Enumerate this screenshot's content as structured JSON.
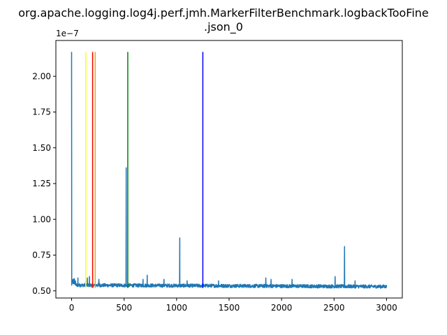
{
  "chart_data": {
    "type": "line",
    "title_line1": "org.apache.logging.log4j.perf.jmh.MarkerFilterBenchmark.logbackTooFine",
    "title_line2": ".json_0",
    "xlabel": "",
    "ylabel": "",
    "xlim": [
      -150,
      3150
    ],
    "ylim": [
      4.5e-08,
      2.25e-07
    ],
    "y_offset_label": "1e−7",
    "x_ticks": [
      0,
      500,
      1000,
      1500,
      2000,
      2500,
      3000
    ],
    "x_tick_labels": [
      "0",
      "500",
      "1000",
      "1500",
      "2000",
      "2500",
      "3000"
    ],
    "y_ticks": [
      5e-08,
      7.5e-08,
      1e-07,
      1.25e-07,
      1.5e-07,
      1.75e-07,
      2e-07
    ],
    "y_tick_labels": [
      "0.50",
      "0.75",
      "1.00",
      "1.25",
      "1.50",
      "1.75",
      "2.00"
    ],
    "grid": false,
    "series": [
      {
        "color": "#1f77b4",
        "baseline": 5.4e-08,
        "x_end": 3000,
        "tail_value": 5.3e-08,
        "spikes": [
          {
            "x": 0,
            "y": 2.17e-07
          },
          {
            "x": 3,
            "y": 6.2e-08
          },
          {
            "x": 15,
            "y": 6.1e-08
          },
          {
            "x": 35,
            "y": 6.35e-08
          },
          {
            "x": 60,
            "y": 5.9e-08
          },
          {
            "x": 150,
            "y": 5.9e-08
          },
          {
            "x": 170,
            "y": 6e-08
          },
          {
            "x": 260,
            "y": 5.8e-08
          },
          {
            "x": 520,
            "y": 1.36e-07
          },
          {
            "x": 525,
            "y": 1e-07
          },
          {
            "x": 680,
            "y": 5.8e-08
          },
          {
            "x": 720,
            "y": 6.1e-08
          },
          {
            "x": 880,
            "y": 5.8e-08
          },
          {
            "x": 1030,
            "y": 8.7e-08
          },
          {
            "x": 1100,
            "y": 5.7e-08
          },
          {
            "x": 1400,
            "y": 5.7e-08
          },
          {
            "x": 1850,
            "y": 5.9e-08
          },
          {
            "x": 1900,
            "y": 5.8e-08
          },
          {
            "x": 2100,
            "y": 5.8e-08
          },
          {
            "x": 2510,
            "y": 6e-08
          },
          {
            "x": 2600,
            "y": 8.1e-08
          },
          {
            "x": 2700,
            "y": 5.7e-08
          }
        ]
      }
    ],
    "vertical_lines": [
      {
        "x": 135,
        "color": "#ffff00",
        "ymin": 5.2e-08,
        "ymax": 2.17e-07
      },
      {
        "x": 200,
        "color": "#ff0000",
        "ymin": 5.2e-08,
        "ymax": 2.17e-07
      },
      {
        "x": 225,
        "color": "#ffa500",
        "ymin": 5.2e-08,
        "ymax": 2.17e-07
      },
      {
        "x": 535,
        "color": "#008000",
        "ymin": 5.2e-08,
        "ymax": 2.17e-07
      },
      {
        "x": 1250,
        "color": "#0000ff",
        "ymin": 5.2e-08,
        "ymax": 2.17e-07
      }
    ]
  }
}
